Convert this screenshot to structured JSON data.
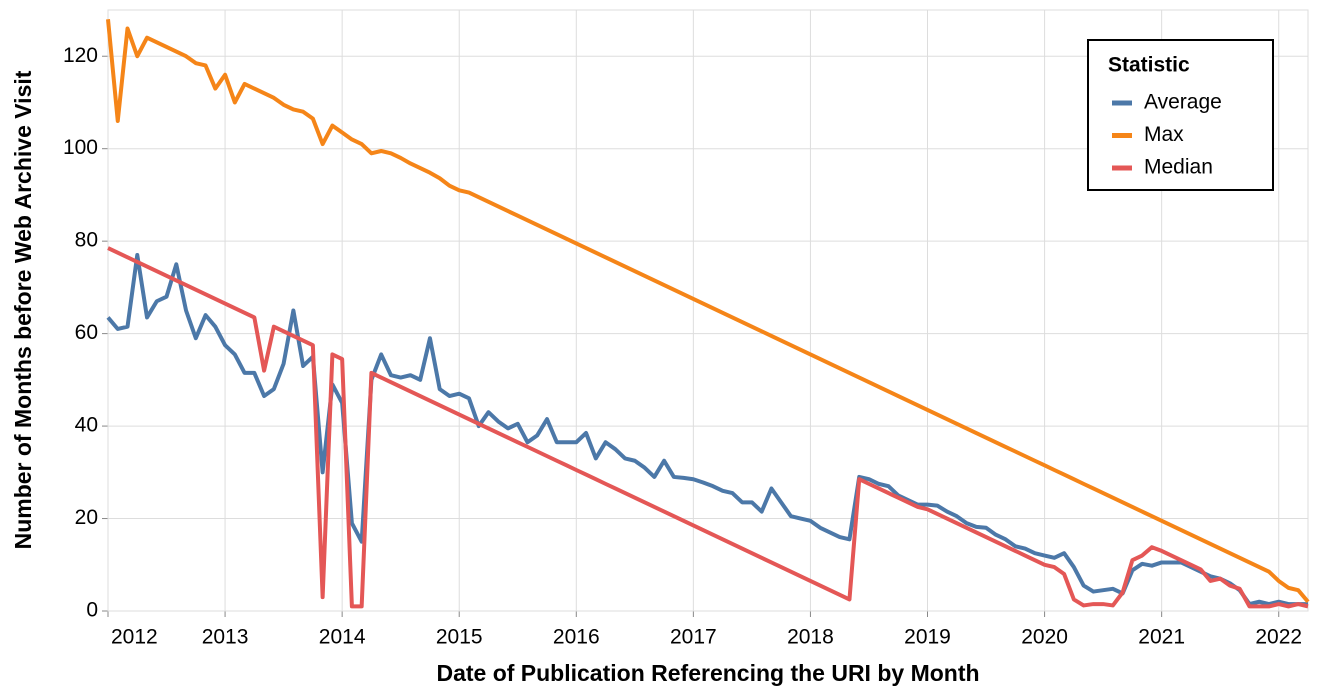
{
  "chart_data": {
    "type": "line",
    "x_label": "Date of Publication Referencing the URI by Month",
    "y_label": "Number of Months before Web Archive Visit",
    "legend_title": "Statistic",
    "legend_position": "top-right",
    "grid": true,
    "xlim": [
      "2012-01",
      "2022-04"
    ],
    "xticks": [
      "2012",
      "2013",
      "2014",
      "2015",
      "2016",
      "2017",
      "2018",
      "2019",
      "2020",
      "2021",
      "2022"
    ],
    "ylim": [
      0,
      130
    ],
    "yticks": [
      0,
      20,
      40,
      60,
      80,
      100,
      120
    ],
    "x": [
      "2012-01",
      "2012-02",
      "2012-03",
      "2012-04",
      "2012-05",
      "2012-06",
      "2012-07",
      "2012-08",
      "2012-09",
      "2012-10",
      "2012-11",
      "2012-12",
      "2013-01",
      "2013-02",
      "2013-03",
      "2013-04",
      "2013-05",
      "2013-06",
      "2013-07",
      "2013-08",
      "2013-09",
      "2013-10",
      "2013-11",
      "2013-12",
      "2014-01",
      "2014-02",
      "2014-03",
      "2014-04",
      "2014-05",
      "2014-06",
      "2014-07",
      "2014-08",
      "2014-09",
      "2014-10",
      "2014-11",
      "2014-12",
      "2015-01",
      "2015-02",
      "2015-03",
      "2015-04",
      "2015-05",
      "2015-06",
      "2015-07",
      "2015-08",
      "2015-09",
      "2015-10",
      "2015-11",
      "2015-12",
      "2016-01",
      "2016-02",
      "2016-03",
      "2016-04",
      "2016-05",
      "2016-06",
      "2016-07",
      "2016-08",
      "2016-09",
      "2016-10",
      "2016-11",
      "2016-12",
      "2017-01",
      "2017-02",
      "2017-03",
      "2017-04",
      "2017-05",
      "2017-06",
      "2017-07",
      "2017-08",
      "2017-09",
      "2017-10",
      "2017-11",
      "2017-12",
      "2018-01",
      "2018-02",
      "2018-03",
      "2018-04",
      "2018-05",
      "2018-06",
      "2018-07",
      "2018-08",
      "2018-09",
      "2018-10",
      "2018-11",
      "2018-12",
      "2019-01",
      "2019-02",
      "2019-03",
      "2019-04",
      "2019-05",
      "2019-06",
      "2019-07",
      "2019-08",
      "2019-09",
      "2019-10",
      "2019-11",
      "2019-12",
      "2020-01",
      "2020-02",
      "2020-03",
      "2020-04",
      "2020-05",
      "2020-06",
      "2020-07",
      "2020-08",
      "2020-09",
      "2020-10",
      "2020-11",
      "2020-12",
      "2021-01",
      "2021-02",
      "2021-03",
      "2021-04",
      "2021-05",
      "2021-06",
      "2021-07",
      "2021-08",
      "2021-09",
      "2021-10",
      "2021-11",
      "2021-12",
      "2022-01",
      "2022-02",
      "2022-03",
      "2022-04"
    ],
    "series": [
      {
        "name": "Average",
        "color": "#4c78a8",
        "values": [
          63.5,
          61,
          61.5,
          77,
          63.5,
          67,
          68,
          75,
          65,
          59,
          64,
          61.5,
          57.5,
          55.5,
          51.5,
          51.5,
          46.5,
          48,
          53.5,
          65,
          53,
          55,
          30,
          49,
          45,
          19,
          15,
          50,
          55.5,
          51,
          50.5,
          51,
          50,
          59,
          48,
          46.5,
          47,
          46,
          40,
          43,
          41,
          39.5,
          40.5,
          36.5,
          38,
          41.5,
          36.5,
          36.5,
          36.5,
          38.5,
          33,
          36.5,
          35,
          33,
          32.5,
          31,
          29,
          32.5,
          29,
          28.8,
          28.5,
          27.8,
          27,
          26,
          25.5,
          23.5,
          23.5,
          21.5,
          26.5,
          23.5,
          20.5,
          20,
          19.5,
          18,
          17,
          16,
          15.5,
          29,
          28.5,
          27.5,
          27,
          25,
          24,
          23,
          23,
          22.8,
          21.5,
          20.5,
          19,
          18.2,
          18,
          16.5,
          15.5,
          14,
          13.5,
          12.5,
          12,
          11.5,
          12.5,
          9.5,
          5.5,
          4.2,
          4.5,
          4.8,
          3.8,
          8.8,
          10.2,
          9.8,
          10.5,
          10.5,
          10.5,
          9.5,
          8.5,
          7.5,
          7,
          6,
          4.5,
          1.5,
          2,
          1.5,
          2,
          1.5,
          1.5,
          1.5
        ]
      },
      {
        "name": "Max",
        "color": "#f58518",
        "values": [
          128,
          106,
          126,
          120,
          124,
          123,
          122,
          121,
          120,
          118.5,
          118,
          113,
          116,
          110,
          114,
          113,
          112,
          111,
          109.5,
          108.5,
          108,
          106.5,
          101,
          105,
          103.5,
          102,
          101,
          99,
          99.5,
          99,
          98,
          96.8,
          95.8,
          94.8,
          93.6,
          92,
          91,
          90.5,
          89.5,
          88.5,
          87.5,
          86.5,
          85.5,
          84.5,
          83.5,
          82.5,
          81.5,
          80.5,
          79.5,
          78.5,
          77.5,
          76.5,
          75.5,
          74.5,
          73.5,
          72.5,
          71.5,
          70.5,
          69.5,
          68.5,
          67.5,
          66.5,
          65.5,
          64.5,
          63.5,
          62.5,
          61.5,
          60.5,
          59.5,
          58.5,
          57.5,
          56.5,
          55.5,
          54.5,
          53.5,
          52.5,
          51.5,
          50.5,
          49.5,
          48.5,
          47.5,
          46.5,
          45.5,
          44.5,
          43.5,
          42.5,
          41.5,
          40.5,
          39.5,
          38.5,
          37.5,
          36.5,
          35.5,
          34.5,
          33.5,
          32.5,
          31.5,
          30.5,
          29.5,
          28.5,
          27.5,
          26.5,
          25.5,
          24.5,
          23.5,
          22.5,
          21.5,
          20.5,
          19.5,
          18.5,
          17.5,
          16.5,
          15.5,
          14.5,
          13.5,
          12.5,
          11.5,
          10.5,
          9.5,
          8.5,
          6.5,
          5,
          4.5,
          2
        ]
      },
      {
        "name": "Median",
        "color": "#e45756",
        "values": [
          78.5,
          77.5,
          76.5,
          75.5,
          74.5,
          73.5,
          72.5,
          71.5,
          70.5,
          69.5,
          68.5,
          67.5,
          66.5,
          65.5,
          64.5,
          63.5,
          52,
          61.5,
          60.5,
          59.5,
          58.5,
          57.5,
          3,
          55.5,
          54.5,
          1,
          1,
          51.5,
          50.5,
          49.5,
          48.5,
          47.5,
          46.5,
          45.5,
          44.5,
          43.5,
          42.5,
          41.5,
          40.5,
          39.5,
          38.5,
          37.5,
          36.5,
          35.5,
          34.5,
          33.5,
          32.5,
          31.5,
          30.5,
          29.5,
          28.5,
          27.5,
          26.5,
          25.5,
          24.5,
          23.5,
          22.5,
          21.5,
          20.5,
          19.5,
          18.5,
          17.5,
          16.5,
          15.5,
          14.5,
          13.5,
          12.5,
          11.5,
          10.5,
          9.5,
          8.5,
          7.5,
          6.5,
          5.5,
          4.5,
          3.5,
          2.5,
          28.5,
          27.5,
          26.5,
          25.5,
          24.5,
          23.5,
          22.5,
          22,
          21,
          20,
          19,
          18,
          17,
          16,
          15,
          14,
          13,
          12,
          11,
          10,
          9.5,
          8,
          2.5,
          1.2,
          1.5,
          1.5,
          1.2,
          4,
          11,
          12,
          13.8,
          13,
          12,
          11,
          10,
          9,
          6.5,
          7,
          5.5,
          4.8,
          1,
          1,
          1,
          1.5,
          1,
          1.5,
          1
        ]
      }
    ]
  }
}
